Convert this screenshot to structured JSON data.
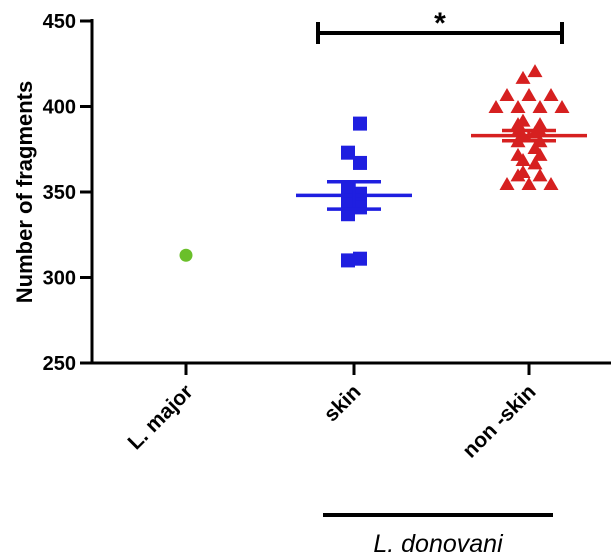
{
  "chart_data": {
    "type": "scatter",
    "ylabel": "Number of fragments",
    "ylim": [
      250,
      450
    ],
    "yticks": [
      250,
      300,
      350,
      400,
      450
    ],
    "categories": [
      "L. major",
      "skin",
      "non -skin"
    ],
    "group_label": "L. donovani",
    "group_categories": [
      "skin",
      "non -skin"
    ],
    "significance": {
      "from": "skin",
      "to": "non -skin",
      "label": "*"
    },
    "colors": {
      "L. major": "#6abf2a",
      "skin": "#1f1fe0",
      "non -skin": "#d62020"
    },
    "markers": {
      "L. major": "circle",
      "skin": "square",
      "non -skin": "triangle"
    },
    "series": [
      {
        "category": "L. major",
        "values": [
          313
        ],
        "mean": null,
        "sem": null
      },
      {
        "category": "skin",
        "values": [
          390,
          373,
          367,
          352,
          349,
          345,
          341,
          337,
          311,
          310
        ],
        "mean": 348,
        "sem": 8
      },
      {
        "category": "non -skin",
        "values": [
          421,
          417,
          407,
          407,
          407,
          400,
          400,
          400,
          400,
          392,
          390,
          390,
          386,
          386,
          385,
          383,
          380,
          380,
          376,
          372,
          372,
          369,
          367,
          362,
          360,
          360,
          355,
          355,
          355
        ],
        "mean": 383,
        "sem": 3
      }
    ]
  }
}
